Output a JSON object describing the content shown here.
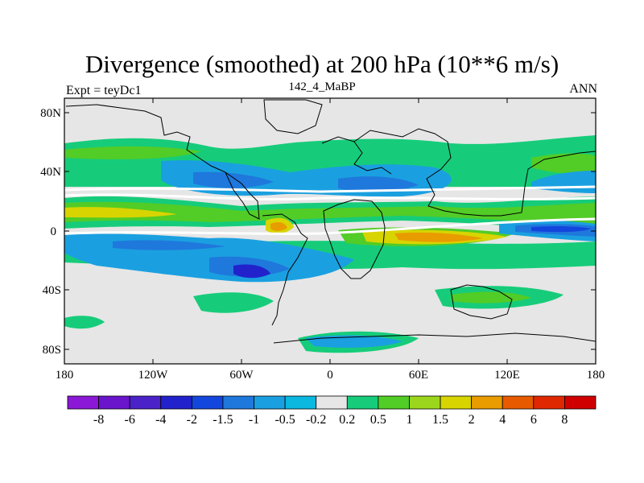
{
  "title": "Divergence (smoothed) at 200 hPa (10**6 m/s)",
  "subtitle_left": "Expt = teyDc1",
  "subtitle_center": "142_4_MaBP",
  "subtitle_right": "ANN",
  "lat_labels": [
    "80N",
    "40N",
    "0",
    "40S",
    "80S"
  ],
  "lon_labels": [
    "180",
    "120W",
    "60W",
    "0",
    "60E",
    "120E",
    "180"
  ],
  "colorbar": {
    "labels": [
      "-8",
      "-6",
      "-4",
      "-2",
      "-1.5",
      "-1",
      "-0.5",
      "-0.2",
      "0.2",
      "0.5",
      "1",
      "1.5",
      "2",
      "4",
      "6",
      "8"
    ],
    "colors": [
      "#8a18d6",
      "#6a14cc",
      "#4a22c8",
      "#2222cc",
      "#1346dc",
      "#1f78dc",
      "#1aa0e0",
      "#0ab8e0",
      "#e6e6e6",
      "#16cc7a",
      "#52cc26",
      "#9cd61c",
      "#d8d400",
      "#e89c00",
      "#e85a00",
      "#e02800",
      "#d00000"
    ]
  },
  "colors": {
    "land_background": "#e6e6e6",
    "coast": "#000000"
  }
}
